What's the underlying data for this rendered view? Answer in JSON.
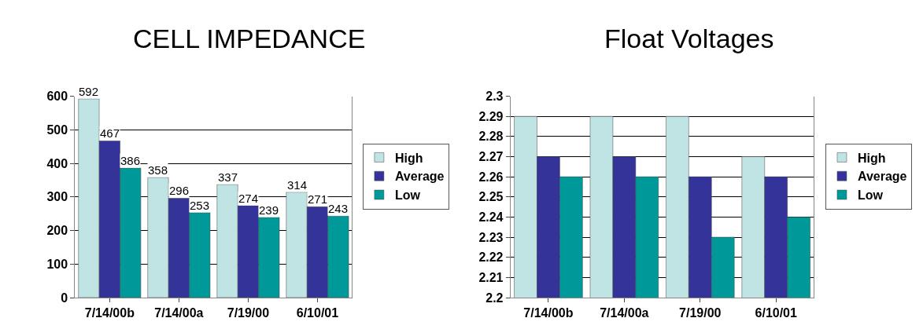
{
  "chart_data": [
    {
      "type": "bar",
      "title": "CELL IMPEDANCE",
      "categories": [
        "7/14/00b",
        "7/14/00a",
        "7/19/00",
        "6/10/01"
      ],
      "series": [
        {
          "name": "High",
          "color": "#c0e4e4",
          "values": [
            592,
            358,
            337,
            314
          ]
        },
        {
          "name": "Average",
          "color": "#333399",
          "values": [
            467,
            296,
            274,
            271
          ]
        },
        {
          "name": "Low",
          "color": "#009999",
          "values": [
            386,
            253,
            239,
            243
          ]
        }
      ],
      "ylim": [
        0,
        600
      ],
      "yticks": [
        0,
        100,
        200,
        300,
        400,
        500,
        600
      ],
      "grid": "y",
      "legend": "right",
      "data_labels": true
    },
    {
      "type": "bar",
      "title": "Float Voltages",
      "categories": [
        "7/14/00b",
        "7/14/00a",
        "7/19/00",
        "6/10/01"
      ],
      "series": [
        {
          "name": "High",
          "color": "#c0e4e4",
          "values": [
            2.29,
            2.29,
            2.29,
            2.27
          ]
        },
        {
          "name": "Average",
          "color": "#333399",
          "values": [
            2.27,
            2.27,
            2.26,
            2.26
          ]
        },
        {
          "name": "Low",
          "color": "#009999",
          "values": [
            2.26,
            2.26,
            2.23,
            2.24
          ]
        }
      ],
      "ylim": [
        2.2,
        2.3
      ],
      "yticks": [
        2.2,
        2.21,
        2.22,
        2.23,
        2.24,
        2.25,
        2.26,
        2.27,
        2.28,
        2.29,
        2.3
      ],
      "grid": "y",
      "legend": "right"
    }
  ]
}
